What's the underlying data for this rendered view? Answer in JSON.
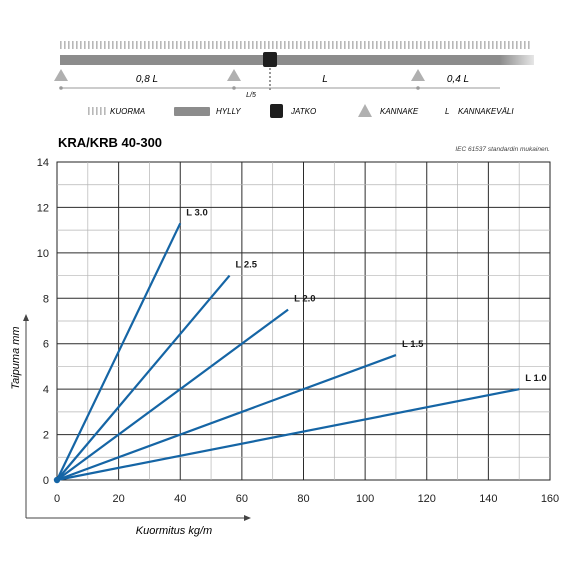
{
  "diagram": {
    "span_labels": [
      "0,8 L",
      "L",
      "0,4 L"
    ],
    "l5_label": "L/5",
    "legend": [
      {
        "icon": "hatch-icon",
        "label": "KUORMA"
      },
      {
        "icon": "shelf-bar-icon",
        "label": "HYLLY"
      },
      {
        "icon": "joint-square-icon",
        "label": "JATKO"
      },
      {
        "icon": "support-triangle-icon",
        "label": "KANNAKE"
      },
      {
        "icon": "L",
        "label": "KANNAKEVÄLI"
      }
    ]
  },
  "product_title": "KRA/KRB 40-300",
  "standard_note": "IEC 61537 standardin mukainen.",
  "colors": {
    "series_line": "#1565a5",
    "shelf": "#8c8c8c",
    "support": "#b0b0b0",
    "grid_dark": "#2b2b2b"
  },
  "chart_data": {
    "type": "line",
    "xlabel": "Kuormitus kg/m",
    "ylabel": "Taipuma mm",
    "xlim": [
      0,
      160
    ],
    "ylim": [
      0,
      14
    ],
    "xticks": [
      0,
      20,
      40,
      60,
      80,
      100,
      120,
      140,
      160
    ],
    "yticks": [
      0,
      2,
      4,
      6,
      8,
      10,
      12,
      14
    ],
    "series": [
      {
        "name": "L 3.0",
        "x": [
          0,
          40
        ],
        "y": [
          0,
          11.3
        ]
      },
      {
        "name": "L 2.5",
        "x": [
          0,
          56
        ],
        "y": [
          0,
          9.0
        ]
      },
      {
        "name": "L 2.0",
        "x": [
          0,
          75
        ],
        "y": [
          0,
          7.5
        ]
      },
      {
        "name": "L 1.5",
        "x": [
          0,
          110
        ],
        "y": [
          0,
          5.5
        ]
      },
      {
        "name": "L 1.0",
        "x": [
          0,
          150
        ],
        "y": [
          0,
          4.0
        ]
      }
    ]
  }
}
